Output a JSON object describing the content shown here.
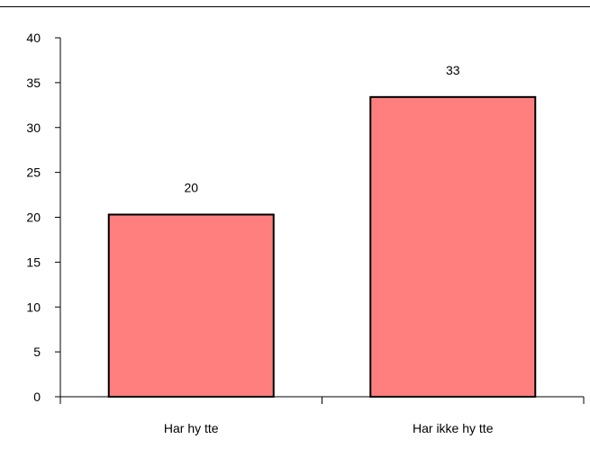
{
  "chart_data": {
    "type": "bar",
    "categories": [
      "Har hy tte",
      "Har ikke hy tte"
    ],
    "values": [
      20.3,
      33.4
    ],
    "data_labels": [
      "20",
      "33"
    ],
    "ylim": [
      0,
      40
    ],
    "yticks": [
      "0",
      "5",
      "10",
      "15",
      "20",
      "25",
      "30",
      "35",
      "40"
    ],
    "grid": false,
    "legend": "none",
    "bar_color": "#FF7F7F",
    "bar_edge_color": "#000000"
  }
}
